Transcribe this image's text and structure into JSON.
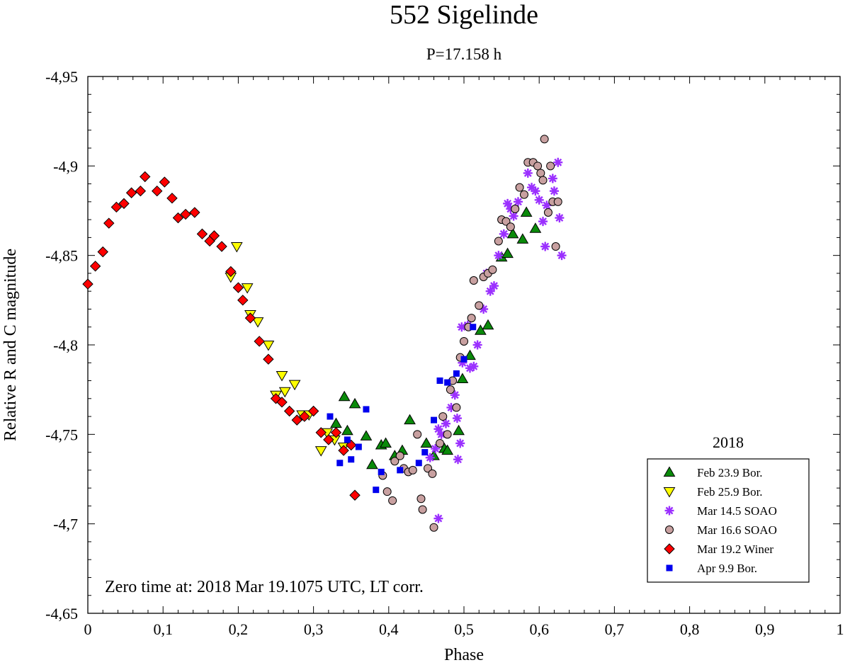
{
  "chart_data": {
    "type": "scatter",
    "title": "552 Sigelinde",
    "subtitle": "P=17.158 h",
    "xlabel": "Phase",
    "ylabel": "Relative R and C magnitude",
    "xlim": [
      0,
      1
    ],
    "ylim": [
      -4.95,
      -4.65
    ],
    "x_ticks": [
      "0",
      "0,1",
      "0,2",
      "0,3",
      "0,4",
      "0,5",
      "0,6",
      "0,7",
      "0,8",
      "0,9",
      "1"
    ],
    "y_ticks": [
      "-4,95",
      "-4,9",
      "-4,85",
      "-4,8",
      "-4,75",
      "-4,7",
      "-4,65"
    ],
    "legend_title": "2018",
    "annotation": "Zero time at: 2018 Mar 19.1075 UTC, LT corr.",
    "series": [
      {
        "name": "Feb 23.9 Bor.",
        "marker": "triangle-up",
        "color": "#0a8a0a",
        "points": [
          [
            0.33,
            -4.756
          ],
          [
            0.341,
            -4.771
          ],
          [
            0.345,
            -4.752
          ],
          [
            0.355,
            -4.767
          ],
          [
            0.37,
            -4.749
          ],
          [
            0.378,
            -4.733
          ],
          [
            0.39,
            -4.744
          ],
          [
            0.396,
            -4.745
          ],
          [
            0.408,
            -4.738
          ],
          [
            0.418,
            -4.741
          ],
          [
            0.428,
            -4.758
          ],
          [
            0.45,
            -4.745
          ],
          [
            0.46,
            -4.738
          ],
          [
            0.474,
            -4.742
          ],
          [
            0.478,
            -4.741
          ],
          [
            0.493,
            -4.752
          ],
          [
            0.498,
            -4.781
          ],
          [
            0.508,
            -4.794
          ],
          [
            0.522,
            -4.808
          ],
          [
            0.532,
            -4.811
          ],
          [
            0.55,
            -4.849
          ],
          [
            0.558,
            -4.851
          ],
          [
            0.565,
            -4.862
          ],
          [
            0.578,
            -4.859
          ],
          [
            0.583,
            -4.874
          ],
          [
            0.595,
            -4.865
          ]
        ]
      },
      {
        "name": "Feb 25.9 Bor.",
        "marker": "triangle-down",
        "color": "#ffff00",
        "points": [
          [
            0.198,
            -4.855
          ],
          [
            0.19,
            -4.838
          ],
          [
            0.212,
            -4.832
          ],
          [
            0.216,
            -4.817
          ],
          [
            0.226,
            -4.813
          ],
          [
            0.24,
            -4.8
          ],
          [
            0.25,
            -4.772
          ],
          [
            0.258,
            -4.783
          ],
          [
            0.262,
            -4.774
          ],
          [
            0.275,
            -4.778
          ],
          [
            0.285,
            -4.761
          ],
          [
            0.294,
            -4.761
          ],
          [
            0.31,
            -4.741
          ],
          [
            0.318,
            -4.751
          ],
          [
            0.328,
            -4.747
          ],
          [
            0.34,
            -4.743
          ]
        ]
      },
      {
        "name": "Mar 14.5 SOAO",
        "marker": "asterisk",
        "color": "#9b30ff",
        "points": [
          [
            0.466,
            -4.703
          ],
          [
            0.455,
            -4.737
          ],
          [
            0.462,
            -4.742
          ],
          [
            0.47,
            -4.75
          ],
          [
            0.476,
            -4.756
          ],
          [
            0.466,
            -4.753
          ],
          [
            0.483,
            -4.765
          ],
          [
            0.488,
            -4.772
          ],
          [
            0.491,
            -4.759
          ],
          [
            0.495,
            -4.745
          ],
          [
            0.492,
            -4.736
          ],
          [
            0.498,
            -4.79
          ],
          [
            0.497,
            -4.81
          ],
          [
            0.505,
            -4.811
          ],
          [
            0.508,
            -4.787
          ],
          [
            0.513,
            -4.788
          ],
          [
            0.518,
            -4.8
          ],
          [
            0.526,
            -4.82
          ],
          [
            0.53,
            -4.84
          ],
          [
            0.535,
            -4.83
          ],
          [
            0.54,
            -4.833
          ],
          [
            0.546,
            -4.85
          ],
          [
            0.553,
            -4.862
          ],
          [
            0.558,
            -4.879
          ],
          [
            0.562,
            -4.876
          ],
          [
            0.566,
            -4.872
          ],
          [
            0.572,
            -4.88
          ],
          [
            0.585,
            -4.896
          ],
          [
            0.59,
            -4.888
          ],
          [
            0.595,
            -4.886
          ],
          [
            0.6,
            -4.881
          ],
          [
            0.605,
            -4.869
          ],
          [
            0.608,
            -4.855
          ],
          [
            0.61,
            -4.878
          ],
          [
            0.618,
            -4.893
          ],
          [
            0.62,
            -4.886
          ],
          [
            0.625,
            -4.902
          ],
          [
            0.627,
            -4.871
          ],
          [
            0.63,
            -4.85
          ]
        ]
      },
      {
        "name": "Mar 16.6 SOAO",
        "marker": "circle",
        "color": "#c8a0a0",
        "points": [
          [
            0.392,
            -4.727
          ],
          [
            0.398,
            -4.718
          ],
          [
            0.405,
            -4.713
          ],
          [
            0.408,
            -4.735
          ],
          [
            0.415,
            -4.738
          ],
          [
            0.42,
            -4.731
          ],
          [
            0.426,
            -4.729
          ],
          [
            0.432,
            -4.73
          ],
          [
            0.438,
            -4.75
          ],
          [
            0.443,
            -4.714
          ],
          [
            0.445,
            -4.708
          ],
          [
            0.452,
            -4.731
          ],
          [
            0.458,
            -4.728
          ],
          [
            0.46,
            -4.698
          ],
          [
            0.468,
            -4.745
          ],
          [
            0.472,
            -4.76
          ],
          [
            0.478,
            -4.75
          ],
          [
            0.482,
            -4.775
          ],
          [
            0.485,
            -4.78
          ],
          [
            0.49,
            -4.765
          ],
          [
            0.495,
            -4.793
          ],
          [
            0.5,
            -4.802
          ],
          [
            0.506,
            -4.81
          ],
          [
            0.51,
            -4.815
          ],
          [
            0.513,
            -4.836
          ],
          [
            0.52,
            -4.822
          ],
          [
            0.526,
            -4.838
          ],
          [
            0.532,
            -4.84
          ],
          [
            0.538,
            -4.842
          ],
          [
            0.546,
            -4.858
          ],
          [
            0.55,
            -4.87
          ],
          [
            0.556,
            -4.869
          ],
          [
            0.562,
            -4.866
          ],
          [
            0.568,
            -4.876
          ],
          [
            0.574,
            -4.888
          ],
          [
            0.58,
            -4.884
          ],
          [
            0.585,
            -4.902
          ],
          [
            0.592,
            -4.902
          ],
          [
            0.598,
            -4.9
          ],
          [
            0.602,
            -4.896
          ],
          [
            0.605,
            -4.892
          ],
          [
            0.607,
            -4.915
          ],
          [
            0.612,
            -4.874
          ],
          [
            0.615,
            -4.9
          ],
          [
            0.618,
            -4.88
          ],
          [
            0.622,
            -4.855
          ],
          [
            0.625,
            -4.88
          ]
        ]
      },
      {
        "name": "Mar 19.2 Winer",
        "marker": "diamond",
        "color": "#ff0000",
        "points": [
          [
            0.0,
            -4.834
          ],
          [
            0.01,
            -4.844
          ],
          [
            0.02,
            -4.852
          ],
          [
            0.028,
            -4.868
          ],
          [
            0.038,
            -4.877
          ],
          [
            0.048,
            -4.879
          ],
          [
            0.058,
            -4.885
          ],
          [
            0.07,
            -4.886
          ],
          [
            0.076,
            -4.894
          ],
          [
            0.092,
            -4.886
          ],
          [
            0.102,
            -4.891
          ],
          [
            0.112,
            -4.882
          ],
          [
            0.12,
            -4.871
          ],
          [
            0.13,
            -4.873
          ],
          [
            0.142,
            -4.874
          ],
          [
            0.152,
            -4.862
          ],
          [
            0.162,
            -4.858
          ],
          [
            0.168,
            -4.861
          ],
          [
            0.178,
            -4.855
          ],
          [
            0.19,
            -4.841
          ],
          [
            0.2,
            -4.832
          ],
          [
            0.206,
            -4.825
          ],
          [
            0.216,
            -4.815
          ],
          [
            0.228,
            -4.802
          ],
          [
            0.24,
            -4.792
          ],
          [
            0.25,
            -4.77
          ],
          [
            0.258,
            -4.768
          ],
          [
            0.268,
            -4.763
          ],
          [
            0.278,
            -4.758
          ],
          [
            0.288,
            -4.76
          ],
          [
            0.3,
            -4.763
          ],
          [
            0.31,
            -4.751
          ],
          [
            0.32,
            -4.747
          ],
          [
            0.33,
            -4.751
          ],
          [
            0.34,
            -4.741
          ],
          [
            0.35,
            -4.744
          ],
          [
            0.355,
            -4.716
          ]
        ]
      },
      {
        "name": "Apr 9.9 Bor.",
        "marker": "square",
        "color": "#0000ee",
        "points": [
          [
            0.322,
            -4.76
          ],
          [
            0.335,
            -4.734
          ],
          [
            0.345,
            -4.747
          ],
          [
            0.35,
            -4.736
          ],
          [
            0.36,
            -4.743
          ],
          [
            0.37,
            -4.764
          ],
          [
            0.383,
            -4.719
          ],
          [
            0.39,
            -4.729
          ],
          [
            0.415,
            -4.73
          ],
          [
            0.44,
            -4.734
          ],
          [
            0.448,
            -4.74
          ],
          [
            0.46,
            -4.758
          ],
          [
            0.468,
            -4.78
          ],
          [
            0.478,
            -4.779
          ],
          [
            0.49,
            -4.784
          ],
          [
            0.5,
            -4.792
          ],
          [
            0.512,
            -4.81
          ]
        ]
      }
    ]
  }
}
